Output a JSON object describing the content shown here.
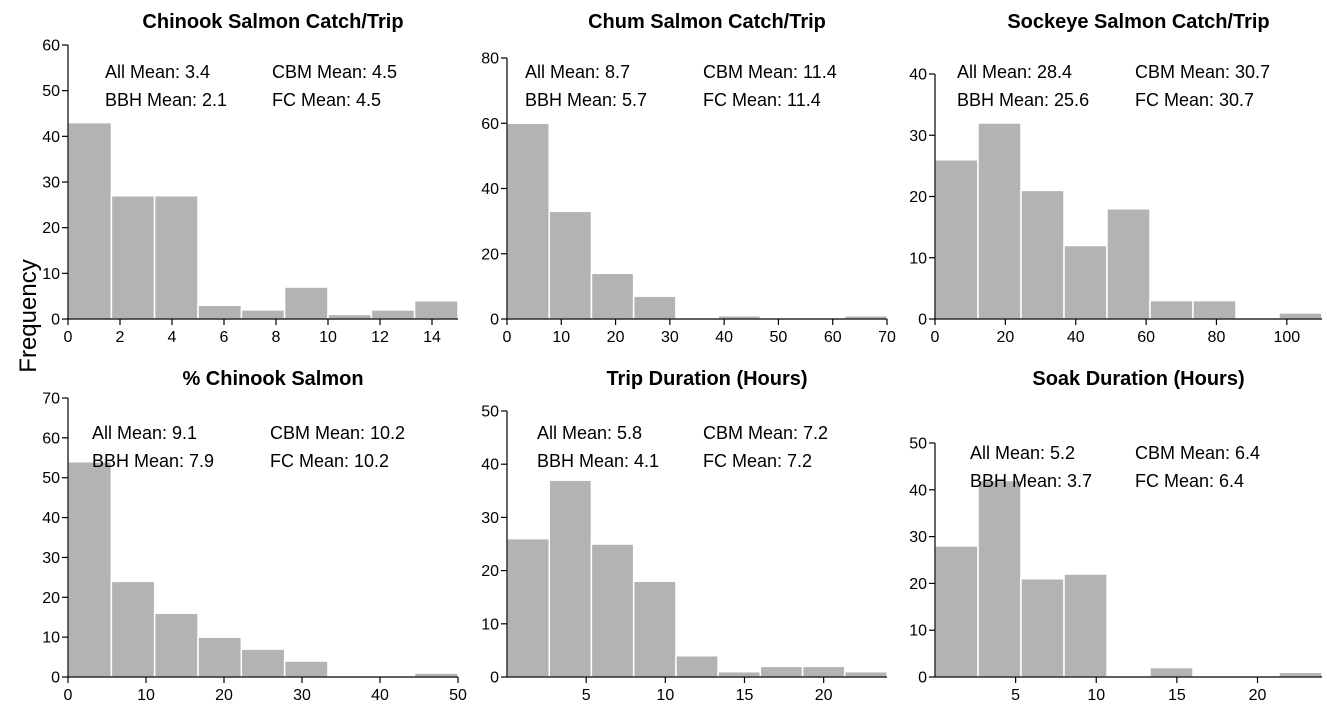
{
  "figure": {
    "ylabel": "Frequency",
    "bar_color": "#b3b3b3",
    "bar_edge_color": "#ffffff",
    "axis_color": "#000000"
  },
  "chart_data": [
    {
      "type": "bar",
      "title": "Chinook Salmon Catch/Trip",
      "xlabel": "",
      "ylabel": "Frequency",
      "xlim": [
        0,
        15
      ],
      "ylim": [
        0,
        60
      ],
      "xticks": [
        0,
        2,
        4,
        6,
        8,
        10,
        12,
        14
      ],
      "yticks": [
        0,
        10,
        20,
        30,
        40,
        50,
        60
      ],
      "bin_edges": [
        0,
        1.67,
        3.33,
        5,
        6.67,
        8.33,
        10,
        11.67,
        13.33,
        15
      ],
      "values": [
        43,
        27,
        27,
        3,
        2,
        7,
        1,
        2,
        4
      ],
      "stats": [
        [
          "All Mean: 3.4",
          "CBM Mean: 4.5"
        ],
        [
          "BBH Mean: 2.1",
          "FC Mean: 4.5"
        ]
      ]
    },
    {
      "type": "bar",
      "title": "Chum Salmon Catch/Trip",
      "xlabel": "",
      "ylabel": "Frequency",
      "xlim": [
        0,
        70
      ],
      "ylim": [
        0,
        80
      ],
      "xticks": [
        0,
        10,
        20,
        30,
        40,
        50,
        60,
        70
      ],
      "yticks": [
        0,
        20,
        40,
        60,
        80
      ],
      "bin_edges": [
        0,
        7.78,
        15.56,
        23.33,
        31.11,
        38.89,
        46.67,
        54.44,
        62.22,
        70
      ],
      "values": [
        60,
        33,
        14,
        7,
        0,
        1,
        0,
        0,
        1
      ],
      "stats": [
        [
          "All Mean: 8.7",
          "CBM Mean: 11.4"
        ],
        [
          "BBH Mean: 5.7",
          "FC Mean: 11.4"
        ]
      ]
    },
    {
      "type": "bar",
      "title": "Sockeye Salmon Catch/Trip",
      "xlabel": "",
      "ylabel": "Frequency",
      "xlim": [
        0,
        110
      ],
      "ylim": [
        0,
        40
      ],
      "xticks": [
        0,
        20,
        40,
        60,
        80,
        100
      ],
      "yticks": [
        0,
        10,
        20,
        30,
        40
      ],
      "bin_edges": [
        0,
        12.22,
        24.44,
        36.67,
        48.89,
        61.11,
        73.33,
        85.56,
        97.78,
        110
      ],
      "values": [
        26,
        32,
        21,
        12,
        18,
        3,
        3,
        0,
        1
      ],
      "stats": [
        [
          "All Mean: 28.4",
          "CBM Mean: 30.7"
        ],
        [
          "BBH Mean: 25.6",
          "FC Mean: 30.7"
        ]
      ]
    },
    {
      "type": "bar",
      "title": "% Chinook Salmon",
      "xlabel": "",
      "ylabel": "Frequency",
      "xlim": [
        0,
        50
      ],
      "ylim": [
        0,
        70
      ],
      "xticks": [
        0,
        10,
        20,
        30,
        40,
        50
      ],
      "yticks": [
        0,
        10,
        20,
        30,
        40,
        50,
        60,
        70
      ],
      "bin_edges": [
        0,
        5.56,
        11.11,
        16.67,
        22.22,
        27.78,
        33.33,
        38.89,
        44.44,
        50
      ],
      "values": [
        54,
        24,
        16,
        10,
        7,
        4,
        0,
        0,
        1
      ],
      "stats": [
        [
          "All Mean: 9.1",
          "CBM Mean: 10.2"
        ],
        [
          "BBH Mean: 7.9",
          "FC Mean: 10.2"
        ]
      ]
    },
    {
      "type": "bar",
      "title": "Trip Duration (Hours)",
      "xlabel": "",
      "ylabel": "Frequency",
      "xlim": [
        0,
        24
      ],
      "ylim": [
        0,
        50
      ],
      "xticks": [
        5,
        10,
        15,
        20
      ],
      "yticks": [
        0,
        10,
        20,
        30,
        40,
        50
      ],
      "bin_edges": [
        0,
        2.67,
        5.33,
        8,
        10.67,
        13.33,
        16,
        18.67,
        21.33,
        24
      ],
      "values": [
        26,
        37,
        25,
        18,
        4,
        1,
        2,
        2,
        1
      ],
      "stats": [
        [
          "All Mean: 5.8",
          "CBM Mean: 7.2"
        ],
        [
          "BBH Mean: 4.1",
          "FC Mean: 7.2"
        ]
      ]
    },
    {
      "type": "bar",
      "title": "Soak Duration (Hours)",
      "xlabel": "",
      "ylabel": "Frequency",
      "xlim": [
        0,
        24
      ],
      "ylim": [
        0,
        50
      ],
      "xticks": [
        5,
        10,
        15,
        20
      ],
      "yticks": [
        0,
        10,
        20,
        30,
        40,
        50
      ],
      "bin_edges": [
        0,
        2.67,
        5.33,
        8,
        10.67,
        13.33,
        16,
        18.67,
        21.33,
        24
      ],
      "values": [
        28,
        42,
        21,
        22,
        0,
        2,
        0,
        0,
        1
      ],
      "stats": [
        [
          "All Mean: 5.2",
          "CBM Mean: 6.4"
        ],
        [
          "BBH Mean: 3.7",
          "FC Mean: 6.4"
        ]
      ]
    }
  ]
}
